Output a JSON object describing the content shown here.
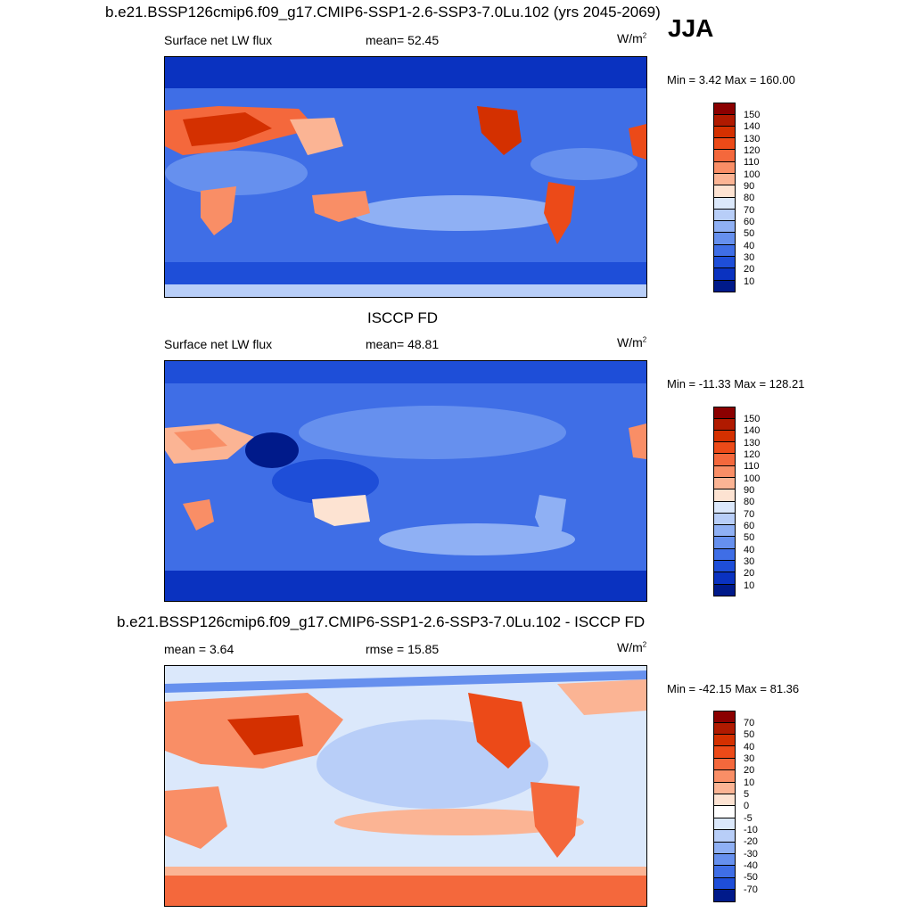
{
  "season": "JJA",
  "panels": [
    {
      "title": "b.e21.BSSP126cmip6.f09_g17.CMIP6-SSP1-2.6-SSP3-7.0Lu.102 (yrs 2045-2069)",
      "left_label": "Surface net LW flux",
      "center_label": "mean=  52.45",
      "units_base": "W/m",
      "units_exp": "2",
      "minmax": "Min =   3.42 Max = 160.00",
      "map_kind": "model"
    },
    {
      "title": "ISCCP FD",
      "left_label": "Surface net LW flux",
      "center_label": "mean=  48.81",
      "units_base": "W/m",
      "units_exp": "2",
      "minmax": "Min = -11.33 Max = 128.21",
      "map_kind": "obs"
    },
    {
      "title": "b.e21.BSSP126cmip6.f09_g17.CMIP6-SSP1-2.6-SSP3-7.0Lu.102 - ISCCP FD",
      "left_label": "mean =   3.64",
      "center_label": "rmse =  15.85",
      "units_base": "W/m",
      "units_exp": "2",
      "minmax": "Min = -42.15 Max =  81.36",
      "map_kind": "diff"
    }
  ],
  "colorbar_abs": {
    "labels": [
      "150",
      "140",
      "130",
      "120",
      "110",
      "100",
      "90",
      "80",
      "70",
      "60",
      "50",
      "40",
      "30",
      "20",
      "10"
    ],
    "colors": [
      "#8b0000",
      "#b01a00",
      "#d43000",
      "#ec4a18",
      "#f4683c",
      "#f98e66",
      "#fbb494",
      "#fde3d2",
      "#dbe8fb",
      "#b8cef8",
      "#8fb0f4",
      "#6690ee",
      "#3f6ee6",
      "#1e4ed8",
      "#0a32c0",
      "#001a8a"
    ]
  },
  "colorbar_diff": {
    "labels": [
      "70",
      "50",
      "40",
      "30",
      "20",
      "10",
      "5",
      "0",
      "-5",
      "-10",
      "-20",
      "-30",
      "-40",
      "-50",
      "-70"
    ],
    "colors": [
      "#8b0000",
      "#b01a00",
      "#d43000",
      "#ec4a18",
      "#f4683c",
      "#f98e66",
      "#fbb494",
      "#fde3d2",
      "#ffffff",
      "#dbe8fb",
      "#b8cef8",
      "#8fb0f4",
      "#6690ee",
      "#3f6ee6",
      "#1e4ed8",
      "#001a8a"
    ]
  }
}
